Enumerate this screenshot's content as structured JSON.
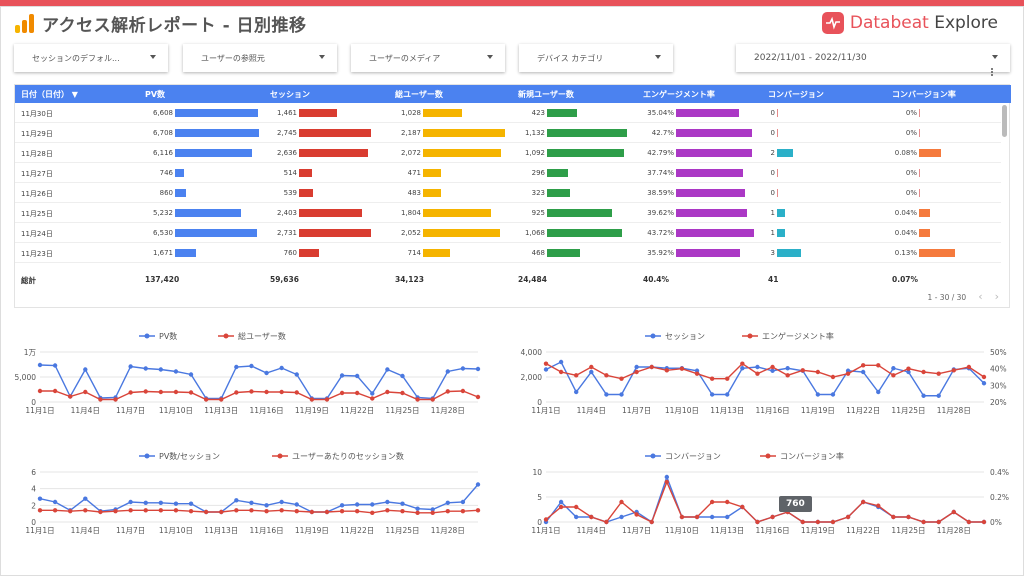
{
  "header": {
    "title": "アクセス解析レポート - 日別推移",
    "brand_primary": "Databeat",
    "brand_secondary": "Explore"
  },
  "filters": [
    {
      "label": "セッションのデフォル..."
    },
    {
      "label": "ユーザーの参照元"
    },
    {
      "label": "ユーザーのメディア"
    },
    {
      "label": "デバイス カテゴリ"
    },
    {
      "label": "2022/11/01 - 2022/11/30"
    }
  ],
  "table": {
    "columns": [
      "日付（日付）",
      "PV数",
      "セッション",
      "総ユーザー数",
      "新規ユーザー数",
      "エンゲージメント率",
      "コンバージョン",
      "コンバージョン率"
    ],
    "sort_indicator": "▼",
    "rows": [
      {
        "date": "11月30日",
        "pv": "6,608",
        "sessions": "1,461",
        "users": "1,028",
        "new_users": "423",
        "eng": "35.04%",
        "cv": "0",
        "cvr": "0%"
      },
      {
        "date": "11月29日",
        "pv": "6,708",
        "sessions": "2,745",
        "users": "2,187",
        "new_users": "1,132",
        "eng": "42.7%",
        "cv": "0",
        "cvr": "0%"
      },
      {
        "date": "11月28日",
        "pv": "6,116",
        "sessions": "2,636",
        "users": "2,072",
        "new_users": "1,092",
        "eng": "42.79%",
        "cv": "2",
        "cvr": "0.08%"
      },
      {
        "date": "11月27日",
        "pv": "746",
        "sessions": "514",
        "users": "471",
        "new_users": "296",
        "eng": "37.74%",
        "cv": "0",
        "cvr": "0%"
      },
      {
        "date": "11月26日",
        "pv": "860",
        "sessions": "539",
        "users": "483",
        "new_users": "323",
        "eng": "38.59%",
        "cv": "0",
        "cvr": "0%"
      },
      {
        "date": "11月25日",
        "pv": "5,232",
        "sessions": "2,403",
        "users": "1,804",
        "new_users": "925",
        "eng": "39.62%",
        "cv": "1",
        "cvr": "0.04%"
      },
      {
        "date": "11月24日",
        "pv": "6,530",
        "sessions": "2,731",
        "users": "2,052",
        "new_users": "1,068",
        "eng": "43.72%",
        "cv": "1",
        "cvr": "0.04%"
      },
      {
        "date": "11月23日",
        "pv": "1,671",
        "sessions": "760",
        "users": "714",
        "new_users": "468",
        "eng": "35.92%",
        "cv": "3",
        "cvr": "0.13%"
      }
    ],
    "totals": {
      "label": "総計",
      "pv": "137,420",
      "sessions": "59,636",
      "users": "34,123",
      "new_users": "24,484",
      "eng": "40.4%",
      "cv": "41",
      "cvr": "0.07%"
    },
    "pager": {
      "range": "1 - 30 / 30",
      "prev": "‹",
      "next": "›"
    },
    "bar_colors": {
      "pv": "#4b82f0",
      "sessions": "#d93c30",
      "users": "#f5b400",
      "new_users": "#2e9e49",
      "eng": "#ab38c5",
      "cv": "#2bb0c8",
      "cvr": "#f57a3d"
    },
    "bar_scale": {
      "pv": 6708,
      "sessions": 2745,
      "users": 2187,
      "new_users": 1132,
      "eng": 43.72,
      "cv": 3,
      "cvr": 0.13
    }
  },
  "chart_data": [
    {
      "type": "line",
      "x": [
        "11月1日",
        "11月2日",
        "11月3日",
        "11月4日",
        "11月5日",
        "11月6日",
        "11月7日",
        "11月8日",
        "11月9日",
        "11月10日",
        "11月11日",
        "11月12日",
        "11月13日",
        "11月14日",
        "11月15日",
        "11月16日",
        "11月17日",
        "11月18日",
        "11月19日",
        "11月20日",
        "11月21日",
        "11月22日",
        "11月23日",
        "11月24日",
        "11月25日",
        "11月26日",
        "11月27日",
        "11月28日",
        "11月29日",
        "11月30日"
      ],
      "x_ticks": [
        "11月1日",
        "11月4日",
        "11月7日",
        "11月10日",
        "11月13日",
        "11月16日",
        "11月19日",
        "11月22日",
        "11月25日",
        "11月28日"
      ],
      "y_ticks": [
        "0",
        "5,000",
        "1万"
      ],
      "ylim": [
        0,
        10000
      ],
      "series": [
        {
          "name": "PV数",
          "color": "#4a78e0",
          "values": [
            7400,
            7300,
            1100,
            6500,
            800,
            900,
            7100,
            6700,
            6500,
            6100,
            5500,
            700,
            700,
            7000,
            7200,
            5800,
            6800,
            5500,
            700,
            700,
            5300,
            5200,
            1700,
            6500,
            5200,
            900,
            700,
            6100,
            6700,
            6600
          ]
        },
        {
          "name": "総ユーザー数",
          "color": "#d9453a",
          "values": [
            2200,
            2200,
            1100,
            2000,
            500,
            500,
            1900,
            2100,
            2000,
            2000,
            1900,
            500,
            500,
            1900,
            2100,
            2000,
            2000,
            1900,
            500,
            500,
            1800,
            1800,
            700,
            2000,
            1800,
            500,
            500,
            2100,
            2200,
            1000
          ]
        }
      ]
    },
    {
      "type": "line",
      "x_ticks": [
        "11月1日",
        "11月4日",
        "11月7日",
        "11月10日",
        "11月13日",
        "11月16日",
        "11月19日",
        "11月22日",
        "11月25日",
        "11月28日"
      ],
      "y_ticks": [
        "0",
        "2,000",
        "4,000"
      ],
      "y2_ticks": [
        "20%",
        "30%",
        "40%",
        "50%"
      ],
      "ylim": [
        0,
        4000
      ],
      "y2lim": [
        20,
        50
      ],
      "series": [
        {
          "name": "セッション",
          "color": "#4a78e0",
          "values": [
            2600,
            3200,
            800,
            2400,
            600,
            600,
            2800,
            2800,
            2700,
            2700,
            2500,
            600,
            600,
            2700,
            2800,
            2500,
            2700,
            2500,
            600,
            600,
            2500,
            2400,
            800,
            2700,
            2400,
            500,
            500,
            2600,
            2700,
            1500
          ]
        },
        {
          "name": "エンゲージメント率",
          "color": "#d9453a",
          "values": [
            43,
            38,
            36,
            41,
            36,
            34,
            38,
            41,
            39,
            40,
            37,
            34,
            34,
            43,
            37,
            41,
            36,
            39,
            38,
            35,
            37,
            42,
            42,
            36,
            40,
            38,
            37,
            39,
            41,
            35
          ]
        }
      ]
    },
    {
      "type": "line",
      "x_ticks": [
        "11月1日",
        "11月4日",
        "11月7日",
        "11月10日",
        "11月13日",
        "11月16日",
        "11月19日",
        "11月22日",
        "11月25日",
        "11月28日"
      ],
      "y_ticks": [
        "0",
        "2",
        "4",
        "6"
      ],
      "ylim": [
        0,
        6
      ],
      "series": [
        {
          "name": "PV数/セッション",
          "color": "#4a78e0",
          "values": [
            2.8,
            2.4,
            1.4,
            2.8,
            1.3,
            1.5,
            2.4,
            2.3,
            2.3,
            2.2,
            2.2,
            1.2,
            1.2,
            2.6,
            2.3,
            2.0,
            2.4,
            2.1,
            1.2,
            1.2,
            2.0,
            2.1,
            2.1,
            2.4,
            2.2,
            1.6,
            1.5,
            2.3,
            2.4,
            4.5
          ]
        },
        {
          "name": "ユーザーあたりのセッション数",
          "color": "#d9453a",
          "values": [
            1.4,
            1.4,
            1.3,
            1.4,
            1.2,
            1.3,
            1.4,
            1.4,
            1.4,
            1.4,
            1.3,
            1.2,
            1.2,
            1.4,
            1.4,
            1.3,
            1.4,
            1.3,
            1.2,
            1.2,
            1.3,
            1.3,
            1.1,
            1.4,
            1.3,
            1.1,
            1.1,
            1.3,
            1.3,
            1.4
          ]
        }
      ]
    },
    {
      "type": "line",
      "x_ticks": [
        "11月1日",
        "11月4日",
        "11月7日",
        "11月10日",
        "11月13日",
        "11月16日",
        "11月19日",
        "11月22日",
        "11月25日",
        "11月28日"
      ],
      "y_ticks": [
        "0",
        "5",
        "10"
      ],
      "y2_ticks": [
        "0%",
        "0.2%",
        "0.4%"
      ],
      "ylim": [
        0,
        10
      ],
      "y2lim": [
        0,
        0.4
      ],
      "series": [
        {
          "name": "コンバージョン",
          "color": "#4a78e0",
          "values": [
            0,
            4,
            1,
            1,
            0,
            1,
            2,
            0,
            9,
            1,
            1,
            1,
            1,
            3,
            0,
            1,
            2,
            0,
            0,
            0,
            1,
            4,
            3,
            1,
            1,
            0,
            0,
            2,
            0,
            0
          ]
        },
        {
          "name": "コンバージョン率",
          "color": "#d9453a",
          "values": [
            0.02,
            0.12,
            0.12,
            0.04,
            0,
            0.16,
            0.06,
            0,
            0.32,
            0.04,
            0.04,
            0.16,
            0.16,
            0.12,
            0,
            0.04,
            0.08,
            0,
            0,
            0,
            0.04,
            0.16,
            0.13,
            0.04,
            0.04,
            0,
            0,
            0.08,
            0,
            0
          ]
        }
      ],
      "tooltip": "760"
    }
  ]
}
